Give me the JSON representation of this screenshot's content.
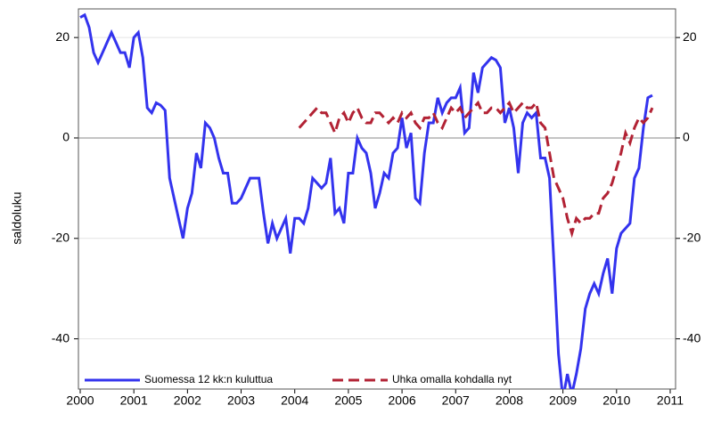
{
  "chart_data": {
    "type": "line",
    "x": [
      2000,
      2000.083,
      2000.167,
      2000.25,
      2000.333,
      2000.417,
      2000.5,
      2000.583,
      2000.667,
      2000.75,
      2000.833,
      2000.917,
      2001,
      2001.083,
      2001.167,
      2001.25,
      2001.333,
      2001.417,
      2001.5,
      2001.583,
      2001.667,
      2001.75,
      2001.833,
      2001.917,
      2002,
      2002.083,
      2002.167,
      2002.25,
      2002.333,
      2002.417,
      2002.5,
      2002.583,
      2002.667,
      2002.75,
      2002.833,
      2002.917,
      2003,
      2003.083,
      2003.167,
      2003.25,
      2003.333,
      2003.417,
      2003.5,
      2003.583,
      2003.667,
      2003.75,
      2003.833,
      2003.917,
      2004,
      2004.083,
      2004.167,
      2004.25,
      2004.333,
      2004.417,
      2004.5,
      2004.583,
      2004.667,
      2004.75,
      2004.833,
      2004.917,
      2005,
      2005.083,
      2005.167,
      2005.25,
      2005.333,
      2005.417,
      2005.5,
      2005.583,
      2005.667,
      2005.75,
      2005.833,
      2005.917,
      2006,
      2006.083,
      2006.167,
      2006.25,
      2006.333,
      2006.417,
      2006.5,
      2006.583,
      2006.667,
      2006.75,
      2006.833,
      2006.917,
      2007,
      2007.083,
      2007.167,
      2007.25,
      2007.333,
      2007.417,
      2007.5,
      2007.583,
      2007.667,
      2007.75,
      2007.833,
      2007.917,
      2008,
      2008.083,
      2008.167,
      2008.25,
      2008.333,
      2008.417,
      2008.5,
      2008.583,
      2008.667,
      2008.75,
      2008.833,
      2008.917,
      2009,
      2009.083,
      2009.167,
      2009.25,
      2009.333,
      2009.417,
      2009.5,
      2009.583,
      2009.667,
      2009.75,
      2009.833,
      2009.917,
      2010,
      2010.083,
      2010.167,
      2010.25,
      2010.333,
      2010.417,
      2010.5,
      2010.583,
      2010.667
    ],
    "series": [
      {
        "name": "Suomessa 12 kk:n kuluttua",
        "color": "#3333ee",
        "dash": false,
        "values": [
          24,
          24.5,
          22,
          17,
          15,
          17,
          19,
          21,
          19,
          17,
          17,
          14,
          20,
          21,
          16,
          6,
          5,
          7,
          6.5,
          5.5,
          -8,
          -12,
          -16,
          -20,
          -14,
          -11,
          -3,
          -6,
          3,
          2,
          0,
          -4,
          -7,
          -7,
          -13,
          -13,
          -12,
          -10,
          -8,
          -8,
          -8,
          -15,
          -21,
          -17,
          -20,
          -18,
          -16,
          -23,
          -16,
          -16,
          -17,
          -14,
          -8,
          -9,
          -10,
          -9,
          -4,
          -15,
          -14,
          -17,
          -7,
          -7,
          0,
          -2,
          -3,
          -7,
          -14,
          -11,
          -7,
          -8,
          -3,
          -2,
          4,
          -2,
          1,
          -12,
          -13,
          -3,
          3,
          3,
          8,
          5,
          7,
          8,
          8,
          10,
          1,
          2,
          13,
          9,
          14,
          15,
          16,
          15.5,
          14,
          3,
          6,
          2,
          -7,
          3,
          5,
          4,
          5,
          -4,
          -4,
          -8,
          -25,
          -43,
          -52,
          -47,
          -51,
          -47,
          -42,
          -34,
          -31,
          -29,
          -31,
          -27,
          -24,
          -31,
          -22,
          -19,
          -18,
          -17,
          -8,
          -6,
          2,
          8,
          8.5
        ]
      },
      {
        "name": "Uhka omalla kohdalla nyt",
        "color": "#b22234",
        "dash": true,
        "values": [
          null,
          null,
          null,
          null,
          null,
          null,
          null,
          null,
          null,
          null,
          null,
          null,
          null,
          null,
          null,
          null,
          null,
          null,
          null,
          null,
          null,
          null,
          null,
          null,
          null,
          null,
          null,
          null,
          null,
          null,
          null,
          null,
          null,
          null,
          null,
          null,
          null,
          null,
          null,
          null,
          null,
          null,
          null,
          null,
          null,
          null,
          null,
          null,
          null,
          2,
          3,
          4,
          5,
          6,
          5,
          5,
          3,
          1,
          4,
          5,
          3,
          5,
          6,
          4,
          3,
          3,
          5,
          5,
          4,
          3,
          4,
          3,
          5,
          4,
          5,
          3,
          2,
          4,
          4,
          5,
          3,
          2,
          4,
          6,
          5,
          6,
          4,
          5,
          6,
          7,
          5,
          5,
          6,
          6,
          5,
          6,
          7,
          5,
          6,
          7,
          6,
          6,
          7,
          3,
          2,
          -3,
          -8,
          -10,
          -12,
          -16,
          -19,
          -16,
          -17,
          -16,
          -16,
          -15,
          -15,
          -12,
          -11,
          -9,
          -6,
          -3,
          1,
          -1,
          2,
          4,
          3,
          4,
          6
        ]
      }
    ],
    "y_label": "saldoluku",
    "xlim": [
      2000,
      2011.1
    ],
    "xticks": [
      2000,
      2001,
      2002,
      2003,
      2004,
      2005,
      2006,
      2007,
      2008,
      2009,
      2010,
      2011
    ],
    "ylim": [
      -50,
      25.7
    ],
    "yticks": [
      -40,
      -20,
      0,
      20
    ],
    "y2lim": [
      -50,
      25.7
    ],
    "y2ticks": [
      -40,
      -20,
      0,
      20
    ],
    "reference_line": 0,
    "grid": true,
    "legend": "bottom-left"
  }
}
